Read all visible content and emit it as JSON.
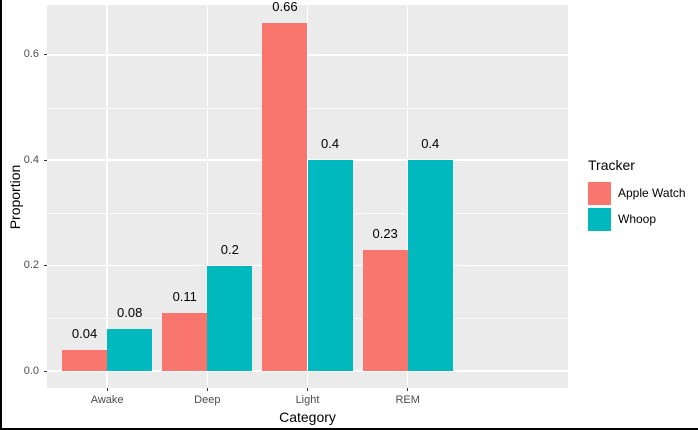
{
  "figure": {
    "background": "#FFFFFF",
    "border_color": "#000000",
    "panel_background": "#EBEBEB",
    "grid_color": "#FFFFFF",
    "tick_color": "#333333",
    "tick_label_color": "#4D4D4D"
  },
  "chart_data": {
    "type": "bar",
    "bar_layout": "dodged",
    "title": "",
    "xlabel": "Category",
    "ylabel": "Proportion",
    "categories": [
      "Awake",
      "Deep",
      "Light",
      "REM"
    ],
    "series": [
      {
        "name": "Apple Watch",
        "color": "#F8766D",
        "values": [
          0.04,
          0.11,
          0.66,
          0.23
        ],
        "value_labels": [
          "0.04",
          "0.11",
          "0.66",
          "0.23"
        ]
      },
      {
        "name": "Whoop",
        "color": "#00B9BE",
        "values": [
          0.08,
          0.2,
          0.4,
          0.4
        ],
        "value_labels": [
          "0.08",
          "0.2",
          "0.4",
          "0.4"
        ]
      }
    ],
    "y_axis": {
      "ticks": [
        0,
        0.2,
        0.4,
        0.6
      ],
      "tick_labels": [
        "0.0",
        "0.2",
        "0.4",
        "0.6"
      ],
      "minor_ticks": [
        0.1,
        0.3,
        0.5
      ],
      "range": [
        -0.033,
        0.693
      ]
    },
    "x_axis": {
      "label": "Category"
    },
    "legend": {
      "title": "Tracker",
      "position": "right"
    },
    "grid": true
  }
}
